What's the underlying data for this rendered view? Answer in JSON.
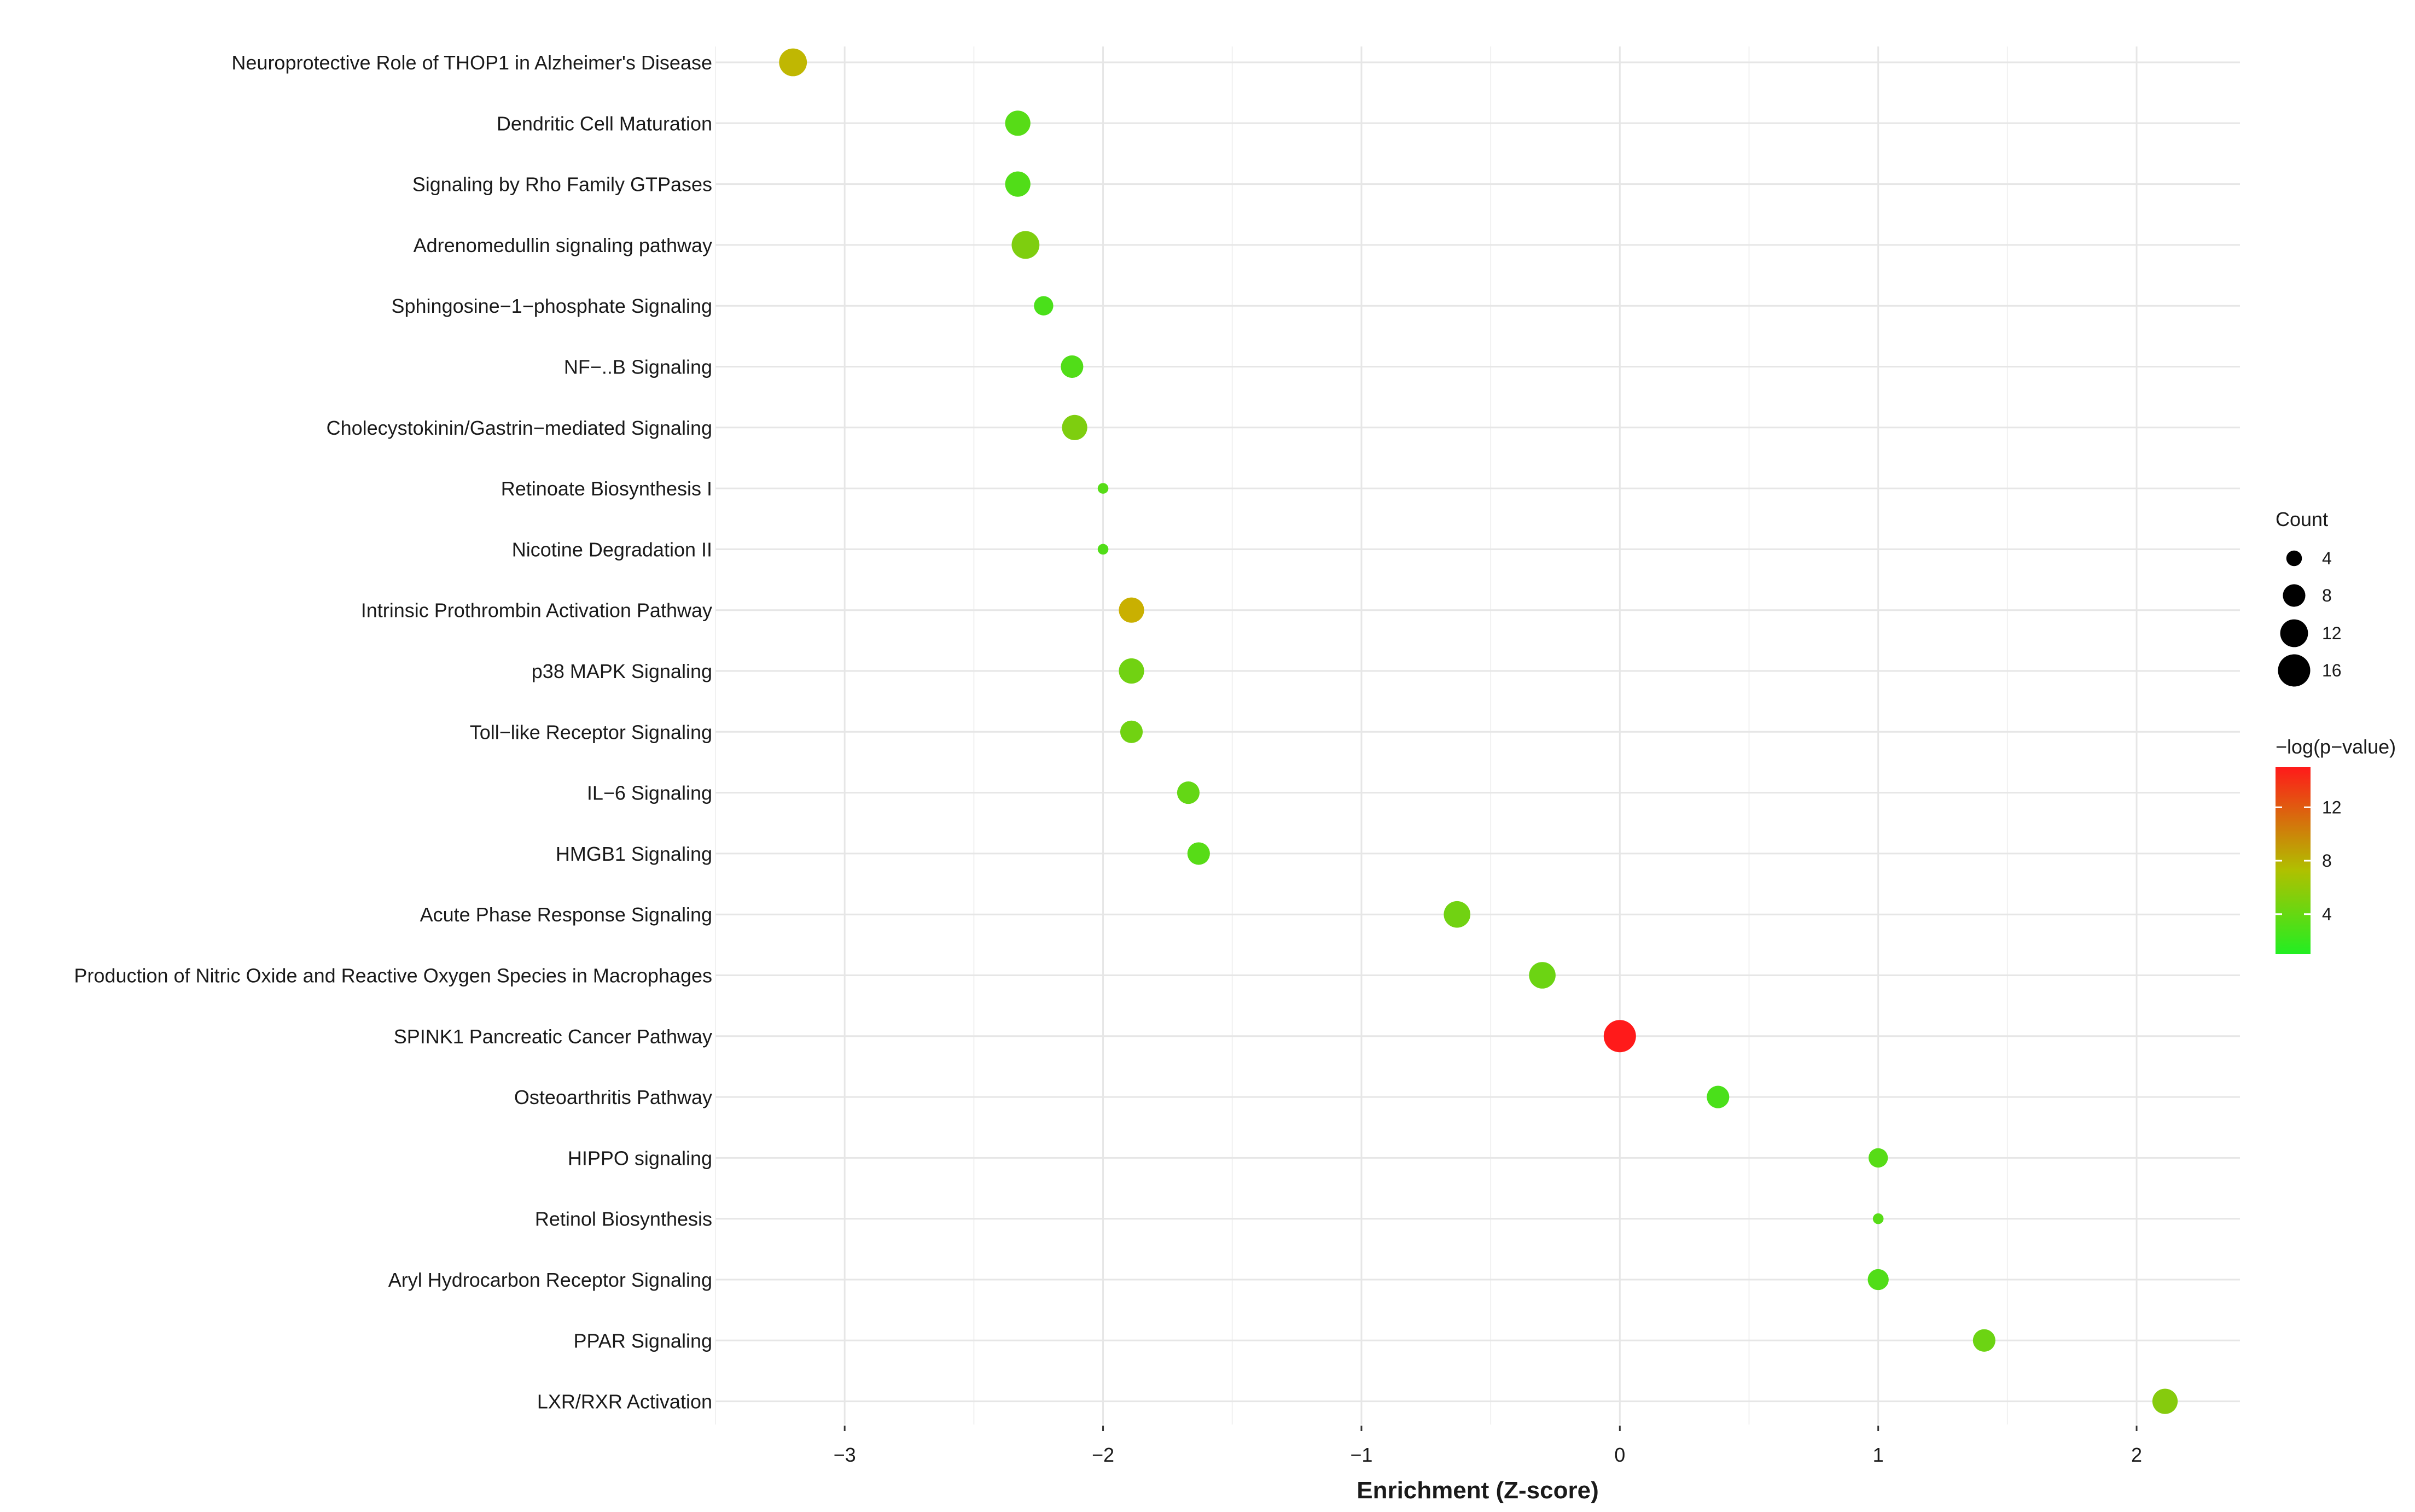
{
  "chart_data": {
    "type": "scatter",
    "title": "",
    "xlabel": "Enrichment (Z-score)",
    "ylabel": "",
    "xlim": [
      -3.5,
      2.4
    ],
    "xticks": [
      -3,
      -2,
      -1,
      0,
      1,
      2
    ],
    "xtick_labels": [
      "−3",
      "−2",
      "−1",
      "0",
      "1",
      "2"
    ],
    "grid": true,
    "categories": [
      "Neuroprotective Role of THOP1 in Alzheimer's Disease",
      "Dendritic Cell Maturation",
      "Signaling by Rho Family GTPases",
      "Adrenomedullin signaling pathway",
      "Sphingosine−1−phosphate Signaling",
      "NF−..B Signaling",
      "Cholecystokinin/Gastrin−mediated Signaling",
      "Retinoate Biosynthesis I",
      "Nicotine Degradation II",
      "Intrinsic Prothrombin Activation Pathway",
      "p38 MAPK Signaling",
      "Toll−like Receptor Signaling",
      "IL−6 Signaling",
      "HMGB1 Signaling",
      "Acute Phase Response Signaling",
      "Production of Nitric Oxide and Reactive Oxygen Species in Macrophages",
      "SPINK1 Pancreatic Cancer Pathway",
      "Osteoarthritis Pathway",
      "HIPPO signaling",
      "Retinol Biosynthesis",
      "Aryl Hydrocarbon Receptor Signaling",
      "PPAR Signaling",
      "LXR/RXR Activation"
    ],
    "points": [
      {
        "pathway": "Neuroprotective Role of THOP1 in Alzheimer's Disease",
        "z": -3.2,
        "count": 12,
        "neglogp": 7.0
      },
      {
        "pathway": "Dendritic Cell Maturation",
        "z": -2.33,
        "count": 10,
        "neglogp": 3.0
      },
      {
        "pathway": "Signaling by Rho Family GTPases",
        "z": -2.33,
        "count": 10,
        "neglogp": 2.8
      },
      {
        "pathway": "Adrenomedullin signaling pathway",
        "z": -2.3,
        "count": 12,
        "neglogp": 4.5
      },
      {
        "pathway": "Sphingosine−1−phosphate Signaling",
        "z": -2.23,
        "count": 6,
        "neglogp": 2.5
      },
      {
        "pathway": "NF−..B Signaling",
        "z": -2.12,
        "count": 8,
        "neglogp": 2.8
      },
      {
        "pathway": "Cholecystokinin/Gastrin−mediated Signaling",
        "z": -2.11,
        "count": 10,
        "neglogp": 4.5
      },
      {
        "pathway": "Retinoate Biosynthesis I",
        "z": -2.0,
        "count": 2,
        "neglogp": 3.0
      },
      {
        "pathway": "Nicotine Degradation II",
        "z": -2.0,
        "count": 2,
        "neglogp": 2.8
      },
      {
        "pathway": "Intrinsic Prothrombin Activation Pathway",
        "z": -1.89,
        "count": 10,
        "neglogp": 7.5
      },
      {
        "pathway": "p38 MAPK Signaling",
        "z": -1.89,
        "count": 10,
        "neglogp": 4.0
      },
      {
        "pathway": "Toll−like Receptor Signaling",
        "z": -1.89,
        "count": 8,
        "neglogp": 4.0
      },
      {
        "pathway": "IL−6 Signaling",
        "z": -1.67,
        "count": 8,
        "neglogp": 3.5
      },
      {
        "pathway": "HMGB1 Signaling",
        "z": -1.63,
        "count": 8,
        "neglogp": 3.0
      },
      {
        "pathway": "Acute Phase Response Signaling",
        "z": -0.63,
        "count": 11,
        "neglogp": 4.0
      },
      {
        "pathway": "Production of Nitric Oxide and Reactive Oxygen Species in Macrophages",
        "z": -0.3,
        "count": 11,
        "neglogp": 3.8
      },
      {
        "pathway": "SPINK1 Pancreatic Cancer Pathway",
        "z": 0.0,
        "count": 16,
        "neglogp": 15.0
      },
      {
        "pathway": "Osteoarthritis Pathway",
        "z": 0.38,
        "count": 8,
        "neglogp": 2.5
      },
      {
        "pathway": "HIPPO signaling",
        "z": 1.0,
        "count": 6,
        "neglogp": 3.0
      },
      {
        "pathway": "Retinol Biosynthesis",
        "z": 1.0,
        "count": 2,
        "neglogp": 3.0
      },
      {
        "pathway": "Aryl Hydrocarbon Receptor Signaling",
        "z": 1.0,
        "count": 7,
        "neglogp": 2.8
      },
      {
        "pathway": "PPAR Signaling",
        "z": 1.41,
        "count": 8,
        "neglogp": 3.8
      },
      {
        "pathway": "LXR/RXR Activation",
        "z": 2.11,
        "count": 10,
        "neglogp": 4.8
      }
    ],
    "size_legend": {
      "title": "Count",
      "values": [
        4,
        8,
        12,
        16
      ],
      "labels": [
        "4",
        "8",
        "12",
        "16"
      ]
    },
    "color_legend": {
      "title": "−log(p−value)",
      "range": [
        1,
        15
      ],
      "ticks": [
        4,
        8,
        12
      ],
      "tick_labels": [
        "4",
        "8",
        "12"
      ],
      "low_color": "#22ee22",
      "mid_color": "#c8b400",
      "high_color": "#ff1a1a"
    },
    "colors": {
      "grid_major": "#e6e6e6",
      "grid_minor": "#f1f1f1",
      "text": "#1a1a1a"
    }
  }
}
